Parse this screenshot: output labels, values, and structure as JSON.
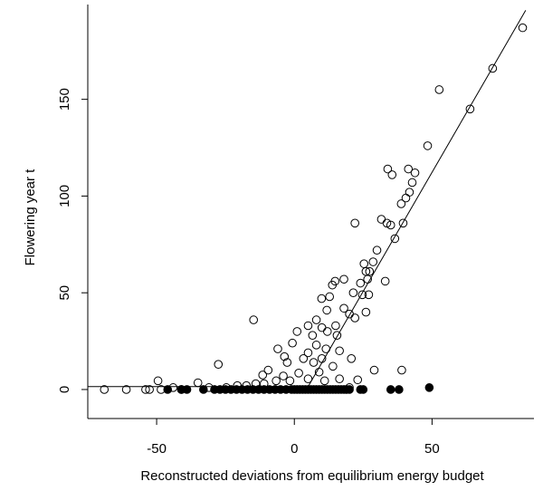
{
  "chart_data": {
    "type": "scatter",
    "x_label": "Reconstructed deviations from equilibrium energy budget",
    "y_label": "Flowering year t",
    "xlim": [
      -75,
      87
    ],
    "ylim": [
      -15,
      199
    ],
    "xticks": [
      -50,
      0,
      50
    ],
    "yticks": [
      0,
      50,
      100,
      150
    ],
    "series": [
      {
        "marker": "open",
        "color": "#000000",
        "x": [
          82.9,
          72,
          63.8,
          52.6,
          48.4,
          41.4,
          43.8,
          42.8,
          41.8,
          33.9,
          35.5,
          33.6,
          35,
          31.6,
          39.5,
          38.8,
          40.5,
          22,
          36.5,
          30,
          28.6,
          25.3,
          26,
          27.3,
          24,
          26.6,
          33,
          18,
          14.8,
          13.8,
          12.8,
          9.9,
          21.4,
          24.7,
          27,
          26,
          -14.8,
          22,
          11.8,
          18,
          20,
          15,
          8,
          5,
          6.6,
          1,
          -0.7,
          8,
          11.5,
          16.4,
          20.7,
          -3.6,
          -6,
          -9.5,
          -11.5,
          -27.6,
          -2.6,
          3.3,
          29,
          39,
          23,
          14,
          9,
          -49.5,
          -35,
          -69,
          -61,
          -54,
          -52.6,
          -48.4,
          -44,
          -41,
          -31,
          -24.7,
          -20.7,
          -17.4,
          -14,
          -11,
          -6.6,
          -4,
          -1.6,
          1.6,
          5,
          11,
          16.4,
          20,
          7,
          10,
          5,
          12,
          15.5,
          10
        ],
        "values": [
          187,
          166,
          145,
          155,
          126,
          114,
          112,
          107,
          102,
          114,
          111,
          86,
          85,
          88,
          86,
          96,
          99,
          86,
          78,
          72,
          66,
          65,
          61,
          61,
          55,
          57,
          56,
          57,
          56,
          54,
          48,
          47,
          50,
          49,
          49,
          40,
          36,
          37,
          41,
          42,
          39,
          33,
          36,
          33,
          28,
          30,
          24,
          23,
          21,
          20,
          16,
          17,
          21,
          10,
          7.5,
          13,
          14,
          16,
          10,
          10,
          5,
          12,
          9,
          4.5,
          3.5,
          0,
          0,
          0,
          0,
          0,
          1,
          0,
          1,
          1,
          2,
          2,
          3,
          3,
          4.5,
          7,
          4.5,
          8.5,
          5.5,
          4.5,
          5.5,
          1,
          14,
          16,
          19,
          30,
          28,
          32
        ]
      },
      {
        "marker": "filled",
        "color": "#000000",
        "x": [
          -46,
          -41,
          -39,
          -33,
          -29,
          -27,
          -25,
          -23,
          -21,
          -19,
          -17,
          -15,
          -13,
          -11,
          -9,
          -7,
          -5,
          -3,
          -1,
          0,
          1,
          2,
          3,
          4,
          5,
          6,
          7,
          8,
          9,
          10,
          11,
          12,
          13,
          14,
          15,
          16,
          17,
          18,
          19,
          20,
          24,
          25,
          35,
          38,
          49
        ],
        "values": [
          0,
          0,
          0,
          0,
          0,
          0,
          0,
          0,
          0,
          0,
          0,
          0,
          0,
          0,
          0,
          0,
          0,
          0,
          0,
          0,
          0,
          0,
          0,
          0,
          0,
          0,
          0,
          0,
          0,
          0,
          0,
          0,
          0,
          0,
          0,
          0,
          0,
          0,
          0,
          0,
          0,
          0,
          0,
          0,
          1
        ]
      }
    ],
    "fit": {
      "color": "#000000",
      "x": [
        -75,
        5,
        84
      ],
      "values": [
        1.5,
        1.5,
        196
      ]
    }
  }
}
